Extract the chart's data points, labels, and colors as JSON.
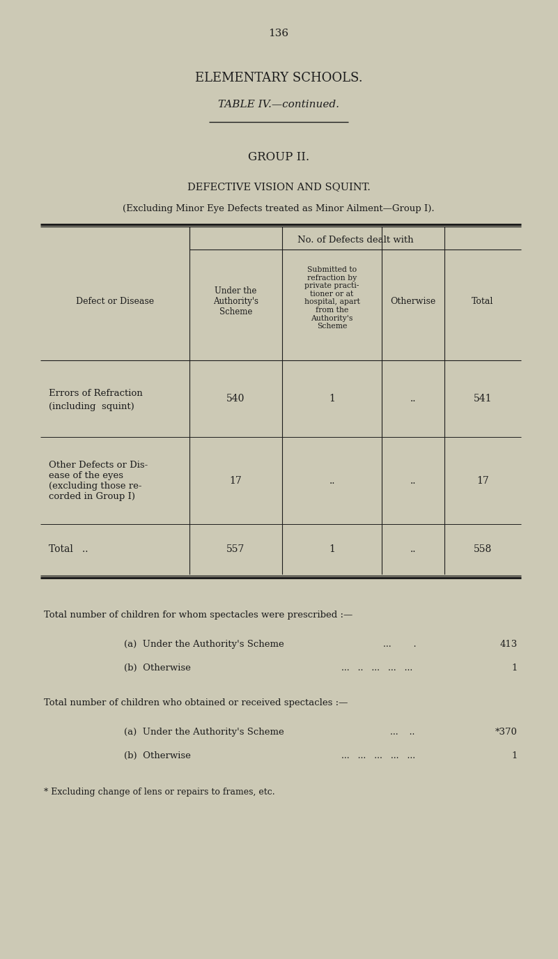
{
  "page_number": "136",
  "title1": "ELEMENTARY SCHOOLS.",
  "title2": "TABLE IV.—continued.",
  "group_title": "GROUP II.",
  "subtitle1": "DEFECTIVE VISION AND SQUINT.",
  "subtitle2": "(Excluding Minor Eye Defects treated as Minor Ailment—Group I).",
  "col_header_main": "No. of Defects dealt with",
  "col_header_row": "Defect or Disease",
  "col_header_1": "Under the\nAuthority's\nScheme",
  "col_header_2": "Submitted to\nrefraction by\nprivate practi-\ntioner or at\nhospital, apart\nfrom the\nAuthority's\nScheme",
  "col_header_3": "Otherwise",
  "col_header_4": "Total",
  "row1_label_1": "Errors of Refraction",
  "row1_label_2": "(including  squint)",
  "row1_c1": "540",
  "row1_c2": "1",
  "row1_c3": "..",
  "row1_c4": "541",
  "row2_label_1": "Other Defects or Dis-",
  "row2_label_2": "ease of the eyes",
  "row2_label_3": "(excluding those re-",
  "row2_label_4": "corded in Group I)",
  "row2_c1": "17",
  "row2_c2": "..",
  "row2_c3": "..",
  "row2_c4": "17",
  "total_label": "Total",
  "total_dots": "..",
  "total_c1": "557",
  "total_c2": "1",
  "total_c3": "..",
  "total_c4": "558",
  "footer1": "Total number of children for whom spectacles were prescribed :—",
  "footer1a_label": "(a)  Under the Authority's Scheme",
  "footer1a_dots": "...        .",
  "footer1a_val": "413",
  "footer1b_label": "(b)  Otherwise",
  "footer1b_dots": "...   ..   ...   ...   ...",
  "footer1b_val": "1",
  "footer2": "Total number of children who obtained or received spectacles :—",
  "footer2a_label": "(a)  Under the Authority's Scheme",
  "footer2a_dots": "...    ..",
  "footer2a_val": "*370",
  "footer2b_label": "(b)  Otherwise",
  "footer2b_dots": "...   ...   ...   ...   ...",
  "footer2b_val": "1",
  "footnote": "* Excluding change of lens or repairs to frames, etc.",
  "bg_color": "#ccc9b5",
  "text_color": "#1c1c1c",
  "fig_width": 8.01,
  "fig_height": 13.76,
  "dpi": 100
}
